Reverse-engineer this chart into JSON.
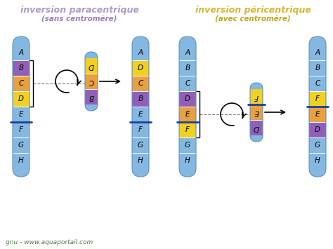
{
  "title_left": "inversion paracentrique",
  "subtitle_left": "(sans centromère)",
  "title_right": "inversion péricentrique",
  "subtitle_right": "(avec centromère)",
  "title_left_color": "#b09aca",
  "title_right_color": "#d4b830",
  "subtitle_left_color": "#9a80c0",
  "subtitle_right_color": "#c0a820",
  "bg_color": "#ffffff",
  "chrom_blue": "#85b8e0",
  "chrom_blue_edge": "#6090c0",
  "seg_purple": "#9060b8",
  "seg_orange": "#e8a040",
  "seg_yellow": "#f0d020",
  "centromere_color": "#1840a0",
  "line_color": "#404040",
  "dashed_color": "#808080",
  "footer_text": "gnu - www.aquaportail.com",
  "footer_color": "#507850",
  "arrow_color": "#303030"
}
